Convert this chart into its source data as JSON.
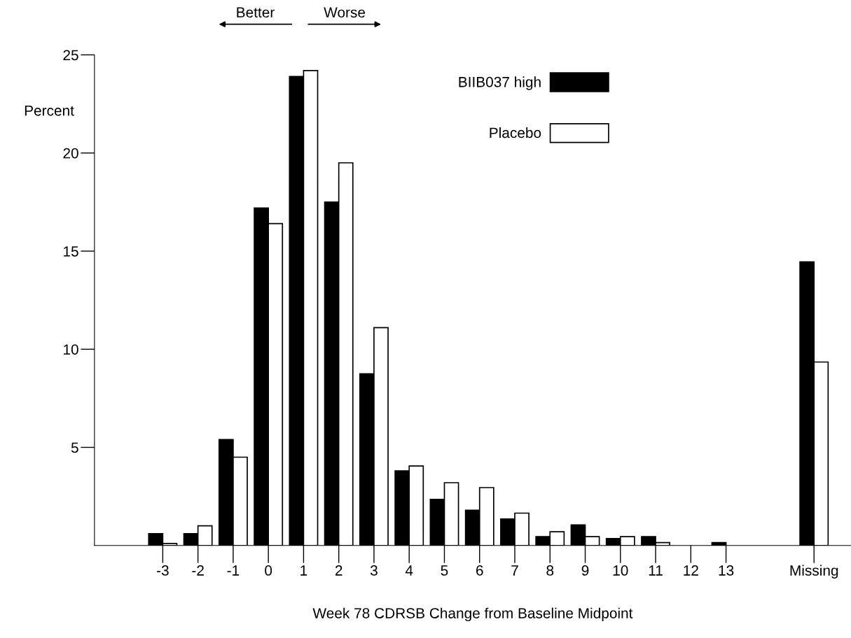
{
  "chart_data": {
    "type": "bar",
    "xlabel": "Week 78 CDRSB Change from Baseline Midpoint",
    "ylabel": "Percent",
    "categories": [
      "-3",
      "-2",
      "-1",
      "0",
      "1",
      "2",
      "3",
      "4",
      "5",
      "6",
      "7",
      "8",
      "9",
      "10",
      "11",
      "12",
      "13",
      "Missing"
    ],
    "series": [
      {
        "name": "BIIB037 high",
        "color": "#000000",
        "values": [
          0.6,
          0.6,
          5.4,
          17.2,
          23.9,
          17.5,
          8.75,
          3.8,
          2.35,
          1.8,
          1.35,
          0.45,
          1.05,
          0.35,
          0.45,
          0,
          0.15,
          14.45
        ]
      },
      {
        "name": "Placebo",
        "color": "#ffffff",
        "values": [
          0.1,
          1.0,
          4.5,
          16.4,
          24.2,
          19.5,
          11.1,
          4.05,
          3.2,
          2.95,
          1.65,
          0.7,
          0.45,
          0.45,
          0.15,
          0,
          0,
          9.35
        ]
      }
    ],
    "ylim": [
      0,
      25
    ],
    "yticks": [
      5,
      10,
      15,
      20,
      25
    ],
    "annotations": [
      "Better",
      "Worse"
    ],
    "legend": "top",
    "grid": false
  }
}
